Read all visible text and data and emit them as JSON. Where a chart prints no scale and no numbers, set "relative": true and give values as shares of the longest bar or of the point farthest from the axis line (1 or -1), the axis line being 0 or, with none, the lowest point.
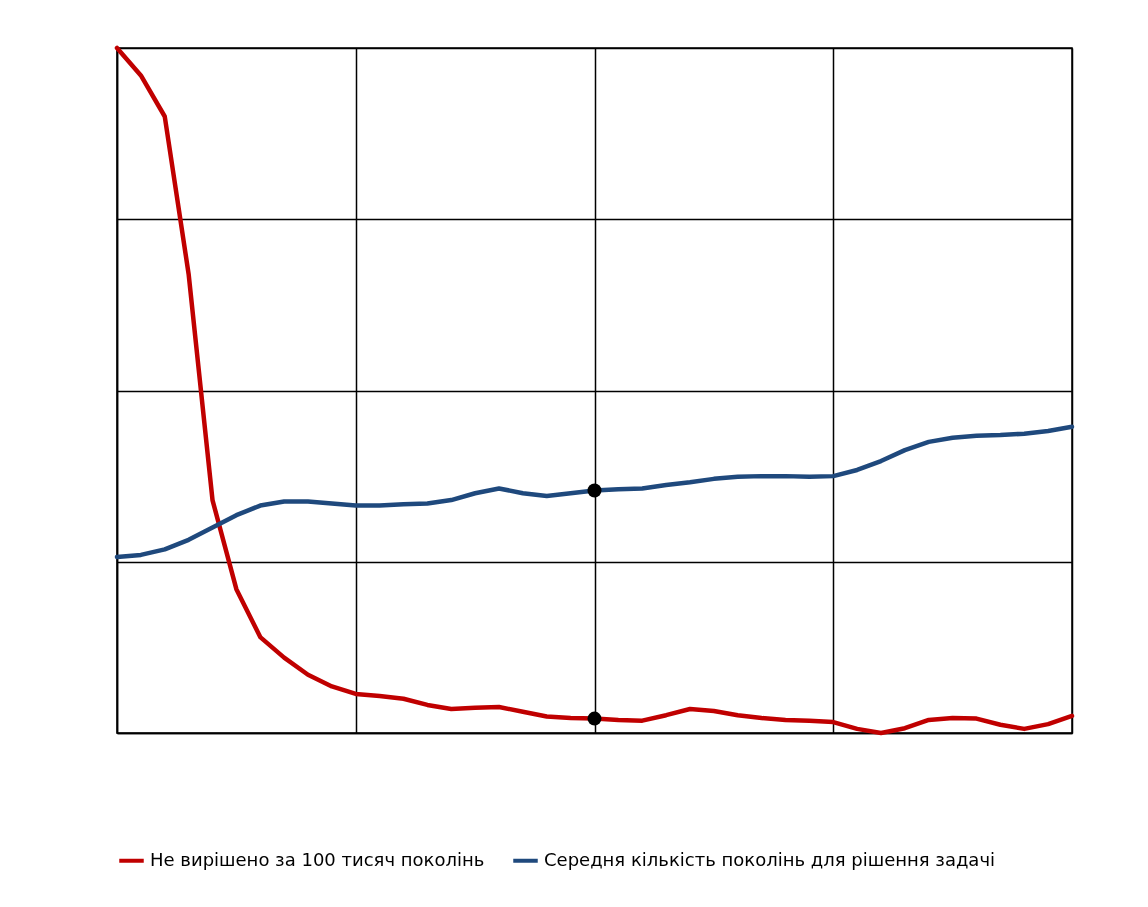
{
  "chart_data": {
    "type": "line",
    "relative": true,
    "grid": true,
    "legend": "bottom",
    "tick_labels": false,
    "line_style": "solid",
    "marker": "none",
    "categories": [
      null,
      null,
      null,
      null,
      null,
      null,
      null,
      null,
      null,
      null,
      null,
      null,
      null,
      null,
      null,
      null,
      null,
      null,
      null,
      null,
      null,
      null,
      null,
      null,
      null,
      null,
      null,
      null,
      null,
      null,
      null,
      null,
      null,
      null,
      null,
      null,
      null,
      null,
      null,
      null,
      null
    ],
    "series": [
      {
        "name": "Не вирішено за 100 тисяч поколінь",
        "color": "#c00000",
        "values": [
          1.0,
          0.96,
          0.9,
          0.67,
          0.34,
          0.21,
          0.14,
          0.11,
          0.085,
          0.068,
          0.057,
          0.054,
          0.05,
          0.041,
          0.035,
          0.037,
          0.038,
          0.031,
          0.024,
          0.022,
          0.021,
          0.019,
          0.018,
          0.026,
          0.035,
          0.032,
          0.026,
          0.022,
          0.019,
          0.018,
          0.016,
          0.006,
          0,
          0.007,
          0.019,
          0.022,
          0.021,
          0.012,
          0.006,
          0.013,
          0.025
        ]
      },
      {
        "name": "Середня кількість поколінь для рішення задачі",
        "color": "#1f497d",
        "values": [
          0.257,
          0.26,
          0.268,
          0.282,
          0.3,
          0.318,
          0.332,
          0.338,
          0.338,
          0.335,
          0.332,
          0.332,
          0.334,
          0.335,
          0.34,
          0.35,
          0.357,
          0.35,
          0.346,
          0.35,
          0.354,
          0.356,
          0.357,
          0.362,
          0.366,
          0.371,
          0.374,
          0.375,
          0.375,
          0.374,
          0.375,
          0.384,
          0.397,
          0.413,
          0.425,
          0.431,
          0.434,
          0.435,
          0.437,
          0.441,
          0.447
        ]
      }
    ]
  }
}
